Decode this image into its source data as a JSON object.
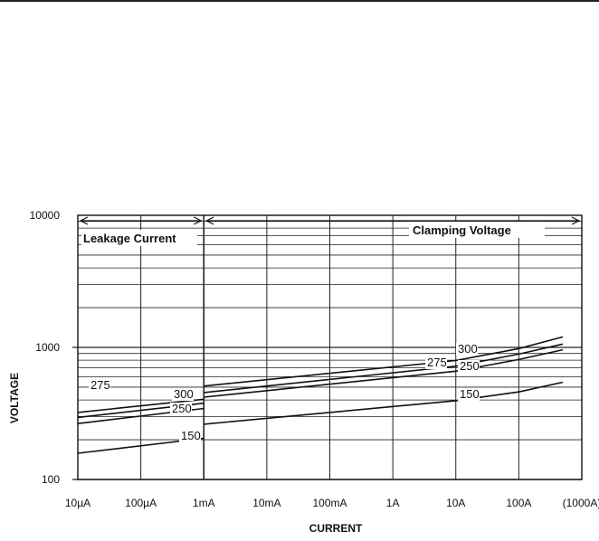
{
  "chart_data": {
    "type": "line",
    "xlabel": "CURRENT",
    "ylabel": "VOLTAGE",
    "x_scale": "log",
    "y_scale": "log",
    "xlim": [
      "10µA",
      "1000A"
    ],
    "ylim": [
      100,
      10000
    ],
    "x_tick_labels": [
      "10µA",
      "100µA",
      "1mA",
      "10mA",
      "100mA",
      "1A",
      "10A",
      "100A",
      "(1000A)"
    ],
    "y_tick_labels": [
      "100",
      "1000",
      "10000"
    ],
    "grid": true,
    "regions": [
      {
        "label": "Leakage Current",
        "from": "10µA",
        "to": "1mA"
      },
      {
        "label": "Clamping Voltage",
        "from": "1mA",
        "to": "1000A"
      }
    ],
    "series": [
      {
        "name": "150",
        "leakage": {
          "x": [
            "10µA",
            "1mA"
          ],
          "y": [
            158,
            205
          ]
        },
        "clamping": {
          "x": [
            "1mA",
            "10A",
            "100A",
            "500A"
          ],
          "y": [
            262,
            395,
            460,
            545
          ]
        }
      },
      {
        "name": "250",
        "leakage": {
          "x": [
            "10µA",
            "1mA"
          ],
          "y": [
            265,
            345
          ]
        },
        "clamping": {
          "x": [
            "1mA",
            "10A",
            "100A",
            "500A"
          ],
          "y": [
            420,
            660,
            810,
            960
          ]
        }
      },
      {
        "name": "275",
        "leakage": {
          "x": [
            "10µA",
            "1mA"
          ],
          "y": [
            295,
            378
          ]
        },
        "clamping": {
          "x": [
            "1mA",
            "10A",
            "100A",
            "500A"
          ],
          "y": [
            455,
            720,
            890,
            1060
          ]
        }
      },
      {
        "name": "300",
        "leakage": {
          "x": [
            "10µA",
            "1mA"
          ],
          "y": [
            322,
            405
          ]
        },
        "clamping": {
          "x": [
            "1mA",
            "10A",
            "100A",
            "500A"
          ],
          "y": [
            510,
            795,
            980,
            1200
          ]
        }
      }
    ]
  }
}
